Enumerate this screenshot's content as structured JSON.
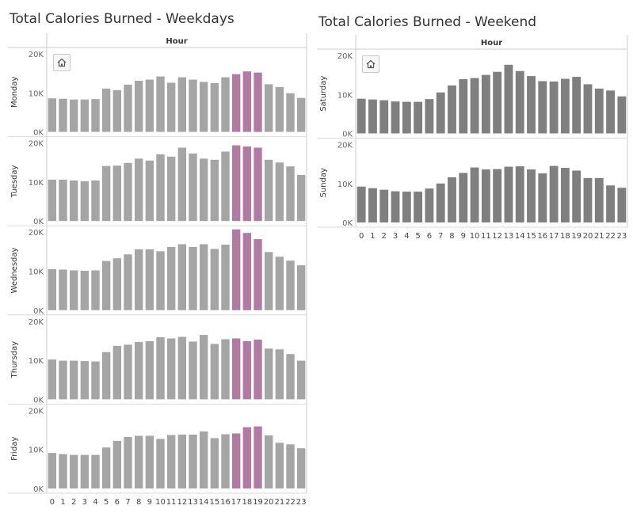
{
  "titles": {
    "weekday": "Total Calories Burned - Weekdays",
    "weekend": "Total Calories Burned - Weekend"
  },
  "icons": {
    "home": "home-icon"
  },
  "colors": {
    "weekday_bar": "#a5a5a5",
    "weekday_highlight": "#b07aa1",
    "weekend_bar": "#7f7f7f"
  },
  "chart_data": [
    {
      "type": "bar",
      "title": "Total Calories Burned - Weekdays",
      "column_header": "Hour",
      "categories": [
        "0",
        "1",
        "2",
        "3",
        "4",
        "5",
        "6",
        "7",
        "8",
        "9",
        "10",
        "11",
        "12",
        "13",
        "14",
        "15",
        "16",
        "17",
        "18",
        "19",
        "20",
        "21",
        "22",
        "23"
      ],
      "highlighted_categories": [
        "17",
        "18",
        "19"
      ],
      "ylim": [
        0,
        20000
      ],
      "yticks": [
        "0K",
        "10K",
        "20K"
      ],
      "series": [
        {
          "name": "Monday",
          "values": [
            8600,
            8500,
            8300,
            8300,
            8400,
            11100,
            10700,
            12100,
            13100,
            13400,
            14200,
            12600,
            14000,
            13400,
            12800,
            12500,
            14000,
            14800,
            15500,
            15200,
            12200,
            11500,
            9900,
            8700
          ]
        },
        {
          "name": "Tuesday",
          "values": [
            10600,
            10600,
            10400,
            10200,
            10400,
            14100,
            14200,
            14900,
            16000,
            15500,
            17100,
            16500,
            18800,
            17300,
            16000,
            15700,
            17800,
            19400,
            19100,
            18800,
            15700,
            15000,
            14000,
            11800
          ]
        },
        {
          "name": "Wednesday",
          "values": [
            10500,
            10400,
            10200,
            10100,
            10200,
            12600,
            13300,
            14300,
            15600,
            15600,
            15100,
            16200,
            16900,
            16200,
            16900,
            15700,
            16800,
            20700,
            19800,
            18200,
            14900,
            13700,
            12700,
            11500
          ]
        },
        {
          "name": "Thursday",
          "values": [
            10200,
            9900,
            9900,
            9800,
            9700,
            12100,
            13700,
            14000,
            14700,
            14900,
            15900,
            15600,
            16000,
            14800,
            16500,
            14200,
            15400,
            15600,
            14900,
            15300,
            13000,
            12800,
            11600,
            9900
          ]
        },
        {
          "name": "Friday",
          "values": [
            9100,
            8800,
            8600,
            8600,
            8600,
            10500,
            12200,
            13200,
            13500,
            13500,
            12700,
            13700,
            13800,
            13800,
            14600,
            12900,
            13900,
            14100,
            15700,
            15900,
            13600,
            11700,
            11300,
            10300
          ]
        }
      ]
    },
    {
      "type": "bar",
      "title": "Total Calories Burned - Weekend",
      "column_header": "Hour",
      "categories": [
        "0",
        "1",
        "2",
        "3",
        "4",
        "5",
        "6",
        "7",
        "8",
        "9",
        "10",
        "11",
        "12",
        "13",
        "14",
        "15",
        "16",
        "17",
        "18",
        "19",
        "20",
        "21",
        "22",
        "23"
      ],
      "ylim": [
        0,
        20000
      ],
      "yticks": [
        "0K",
        "10K",
        "20K"
      ],
      "series": [
        {
          "name": "Saturday",
          "values": [
            8900,
            8700,
            8500,
            8200,
            8100,
            8100,
            8800,
            10500,
            12300,
            13900,
            14200,
            15000,
            15800,
            17600,
            16000,
            14700,
            13400,
            13300,
            14000,
            14500,
            12600,
            11500,
            11000,
            9500
          ]
        },
        {
          "name": "Sunday",
          "values": [
            9200,
            8800,
            8400,
            8000,
            7900,
            7900,
            8700,
            10000,
            11600,
            12700,
            14100,
            13600,
            13700,
            14300,
            14400,
            13600,
            12600,
            14500,
            14000,
            13300,
            11400,
            11400,
            9500,
            8900
          ]
        }
      ]
    }
  ]
}
